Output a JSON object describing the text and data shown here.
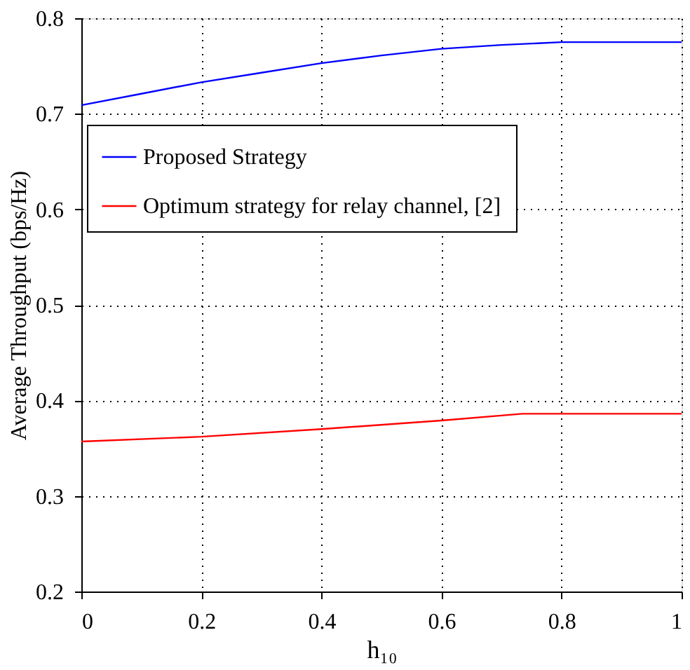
{
  "chart_data": {
    "type": "line",
    "xlabel": "h₁₀",
    "ylabel": "Average Throughput (bps/Hz)",
    "xlim": [
      0,
      1
    ],
    "xticks": [
      0,
      0.2,
      0.4,
      0.6,
      0.8,
      1
    ],
    "ylim": [
      0.2,
      0.8
    ],
    "yticks": [
      0.2,
      0.3,
      0.4,
      0.5,
      0.6,
      0.7,
      0.8
    ],
    "grid": true,
    "legend": "top left",
    "line_style": "solid",
    "marker": "none",
    "series": [
      {
        "name": "Proposed Strategy",
        "color": "#0000ff",
        "x": [
          0,
          0.1,
          0.2,
          0.3,
          0.4,
          0.5,
          0.6,
          0.7,
          0.8,
          0.9,
          1
        ],
        "values": [
          0.709,
          0.721,
          0.733,
          0.743,
          0.753,
          0.761,
          0.768,
          0.772,
          0.775,
          0.775,
          0.775
        ]
      },
      {
        "name": "Optimum strategy for relay channel, [2]",
        "color": "#ff0000",
        "x": [
          0,
          0.2,
          0.4,
          0.6,
          0.735,
          1
        ],
        "values": [
          0.357,
          0.362,
          0.37,
          0.379,
          0.386,
          0.386
        ]
      }
    ]
  }
}
